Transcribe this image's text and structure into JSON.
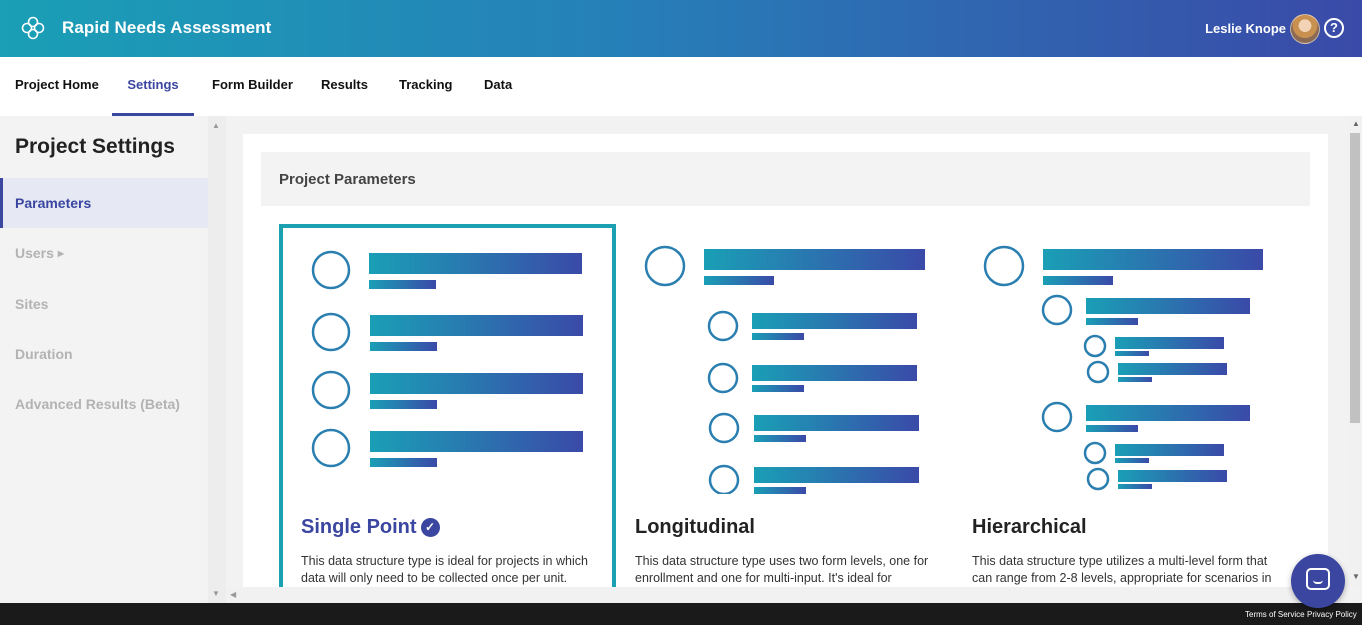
{
  "header": {
    "app_title": "Rapid Needs Assessment",
    "user_name": "Leslie Knope",
    "help_symbol": "?"
  },
  "nav": {
    "tabs": [
      {
        "label": "Project Home"
      },
      {
        "label": "Settings",
        "active": true
      },
      {
        "label": "Form Builder"
      },
      {
        "label": "Results"
      },
      {
        "label": "Tracking"
      },
      {
        "label": "Data"
      }
    ]
  },
  "sidebar": {
    "title": "Project Settings",
    "items": [
      {
        "label": "Parameters",
        "active": true
      },
      {
        "label": "Users"
      },
      {
        "label": "Sites"
      },
      {
        "label": "Duration"
      },
      {
        "label": "Advanced Results (Beta)"
      }
    ]
  },
  "main": {
    "section_title": "Project Parameters",
    "options": [
      {
        "name": "Single Point",
        "selected": true,
        "description": "This data structure type is ideal for projects in which data will only need to be collected once per unit."
      },
      {
        "name": "Longitudinal",
        "selected": false,
        "description": "This data structure type uses two form levels, one for enrollment and one for multi-input. It's ideal for"
      },
      {
        "name": "Hierarchical",
        "selected": false,
        "description": "This data structure type utilizes a multi-level form that can range from 2-8 levels, appropriate for scenarios in"
      }
    ]
  },
  "footer": {
    "terms": "Terms of Service",
    "privacy": "Privacy Policy"
  },
  "colors": {
    "brand_teal": "#1a9fb6",
    "brand_indigo": "#3a46a0",
    "selected_border": "#1aa0b0"
  },
  "icons": [
    "logo-icon",
    "help-icon",
    "avatar",
    "caret-right-icon",
    "check-circle-icon",
    "chat-icon"
  ]
}
